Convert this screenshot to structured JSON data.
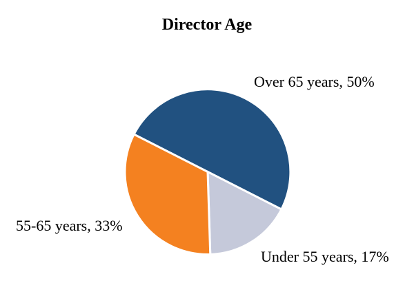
{
  "chart_data": {
    "type": "pie",
    "title": "Director Age",
    "slices": [
      {
        "label": "Over 65 years",
        "value": 50,
        "display": "Over 65 years, 50%",
        "color": "#215180"
      },
      {
        "label": "Under 55 years",
        "value": 17,
        "display": "Under 55 years, 17%",
        "color": "#C5C9DA"
      },
      {
        "label": "55-65 years",
        "value": 33,
        "display": "55-65 years, 33%",
        "color": "#F48120"
      }
    ],
    "start_angle_deg": 297,
    "direction": "clockwise",
    "labels_position": "outside-end",
    "legend": "none",
    "background": "#FFFFFF",
    "separator_color": "#FFFFFF",
    "text_color": "#000000"
  }
}
